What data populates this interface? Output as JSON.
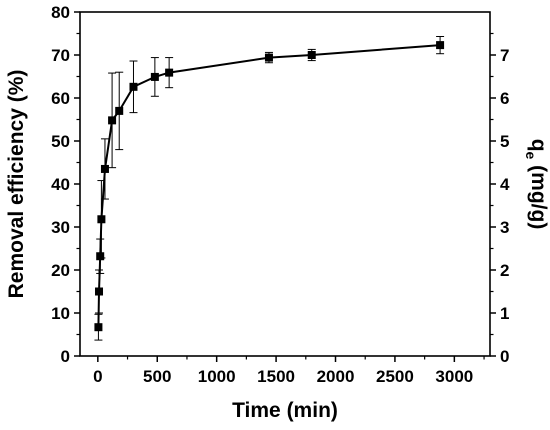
{
  "chart_data": {
    "type": "line",
    "xlabel": "Time (min)",
    "ylabel": "Removal efficiency (%)",
    "y2label": "q",
    "y2label_sub": "e",
    "y2label_unit": " (mg/g)",
    "xlim": [
      -150,
      3300
    ],
    "ylim": [
      0,
      80
    ],
    "y2lim": [
      0,
      8
    ],
    "xticks": [
      0,
      500,
      1000,
      1500,
      2000,
      2500,
      3000
    ],
    "yticks": [
      0,
      10,
      20,
      30,
      40,
      50,
      60,
      70,
      80
    ],
    "y2ticks": [
      0,
      1,
      2,
      3,
      4,
      5,
      6,
      7
    ],
    "xtick_labels": [
      "0",
      "500",
      "1000",
      "1500",
      "2000",
      "2500",
      "3000"
    ],
    "ytick_labels": [
      "0",
      "10",
      "20",
      "30",
      "40",
      "50",
      "60",
      "70",
      "80"
    ],
    "y2tick_labels": [
      "0",
      "1",
      "2",
      "3",
      "4",
      "5",
      "6",
      "7"
    ],
    "grid": false,
    "series": [
      {
        "marker": "square",
        "color": "#000000",
        "x": [
          5,
          10,
          20,
          30,
          60,
          120,
          180,
          300,
          480,
          600,
          1440,
          1800,
          2880
        ],
        "y": [
          6.7,
          15.0,
          23.2,
          31.8,
          43.5,
          54.8,
          57.0,
          62.6,
          64.9,
          65.9,
          69.4,
          70.0,
          72.3
        ],
        "error": [
          3.0,
          5.0,
          4.0,
          9.0,
          7.0,
          11.0,
          9.0,
          6.0,
          4.5,
          3.5,
          1.2,
          1.3,
          2.0
        ]
      }
    ]
  }
}
